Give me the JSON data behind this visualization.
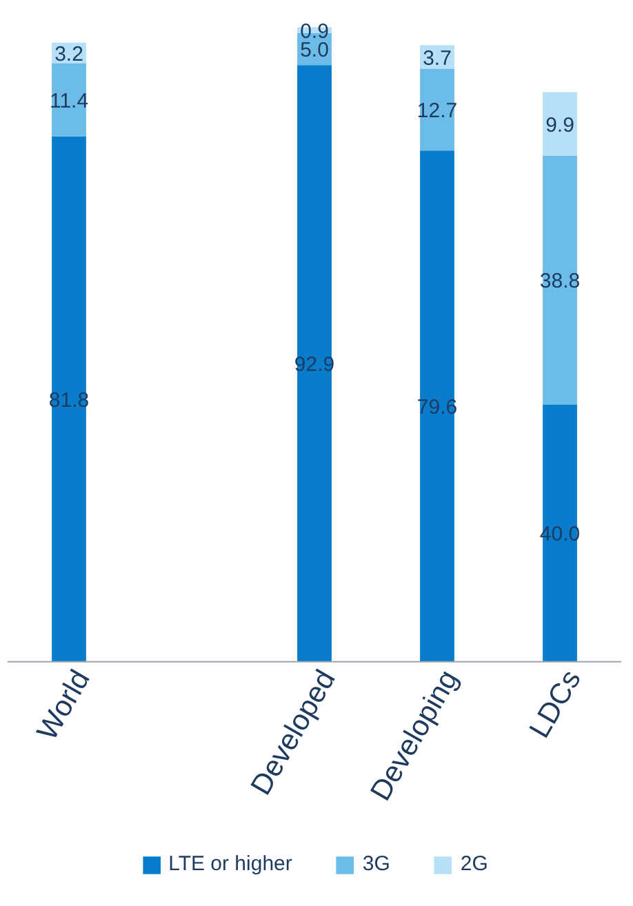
{
  "chart_data": {
    "type": "bar",
    "stacked": true,
    "categories": [
      "World",
      null,
      "Developed",
      "Developing",
      "LDCs"
    ],
    "series": [
      {
        "name": "LTE or higher",
        "color": "#0a7ccc",
        "values": [
          81.8,
          null,
          92.9,
          79.6,
          40.0
        ],
        "value_labels": [
          "81.8",
          null,
          "92.9",
          "79.6",
          "40.0"
        ]
      },
      {
        "name": "3G",
        "color": "#6cbcea",
        "values": [
          11.4,
          null,
          5.0,
          12.7,
          38.8
        ],
        "value_labels": [
          "11.4",
          null,
          "5.0",
          "12.7",
          "38.8"
        ]
      },
      {
        "name": "2G",
        "color": "#b6e0f7",
        "values": [
          3.2,
          null,
          0.9,
          3.7,
          9.9
        ],
        "value_labels": [
          "3.2",
          null,
          "0.9",
          "3.7",
          "9.9"
        ]
      }
    ],
    "legend": "bottom"
  }
}
